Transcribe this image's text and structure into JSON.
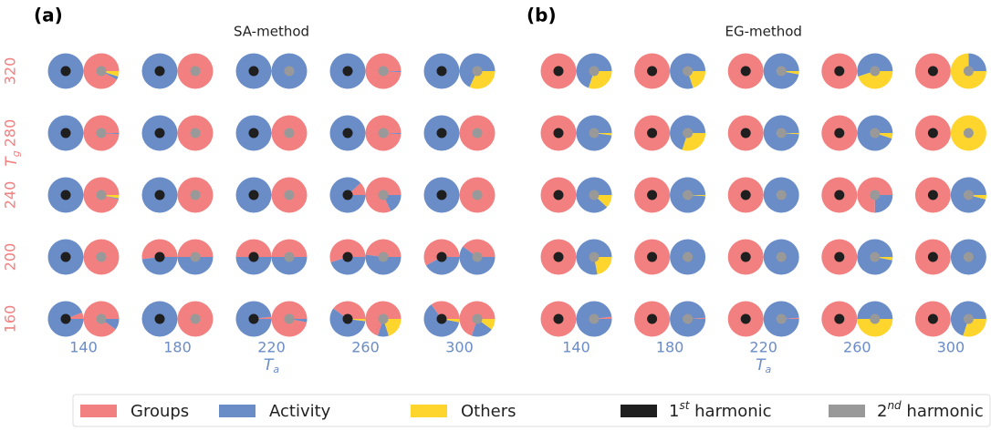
{
  "chart_data": [
    {
      "type": "pie-grid",
      "panel_label": "(a)",
      "title": "SA-method",
      "xlabel": {
        "text": "T",
        "sub": "a"
      },
      "ylabel": {
        "text": "T",
        "sub": "g"
      },
      "xcategories": [
        "140",
        "180",
        "220",
        "260",
        "300"
      ],
      "ycategories": [
        "320",
        "280",
        "240",
        "200",
        "160"
      ],
      "xaxis_color": "#6a8cc7",
      "yaxis_color": "#f28080",
      "pies": [
        [
          [
            [
              0,
              100,
              0
            ],
            [
              92,
              3,
              5
            ]
          ],
          [
            [
              0,
              100,
              0
            ],
            [
              100,
              0,
              0
            ]
          ],
          [
            [
              0,
              100,
              0
            ],
            [
              0,
              100,
              0
            ]
          ],
          [
            [
              0,
              100,
              0
            ],
            [
              99,
              1,
              0
            ]
          ],
          [
            [
              0,
              100,
              0
            ],
            [
              0,
              68,
              32
            ]
          ]
        ],
        [
          [
            [
              0,
              100,
              0
            ],
            [
              99,
              1,
              0
            ]
          ],
          [
            [
              0,
              100,
              0
            ],
            [
              100,
              0,
              0
            ]
          ],
          [
            [
              0,
              100,
              0
            ],
            [
              100,
              0,
              0
            ]
          ],
          [
            [
              0,
              100,
              0
            ],
            [
              99,
              1,
              0
            ]
          ],
          [
            [
              0,
              100,
              0
            ],
            [
              100,
              0,
              0
            ]
          ]
        ],
        [
          [
            [
              0,
              100,
              0
            ],
            [
              96,
              1,
              3
            ]
          ],
          [
            [
              0,
              100,
              0
            ],
            [
              100,
              0,
              0
            ]
          ],
          [
            [
              0,
              100,
              0
            ],
            [
              100,
              0,
              0
            ]
          ],
          [
            [
              12,
              88,
              0
            ],
            [
              82,
              18,
              0
            ]
          ],
          [
            [
              0,
              100,
              0
            ],
            [
              100,
              0,
              0
            ]
          ]
        ],
        [
          [
            [
              0,
              100,
              0
            ],
            [
              100,
              0,
              0
            ]
          ],
          [
            [
              52,
              48,
              0
            ],
            [
              50,
              50,
              0
            ]
          ],
          [
            [
              50,
              50,
              0
            ],
            [
              50,
              50,
              0
            ]
          ],
          [
            [
              55,
              45,
              0
            ],
            [
              48,
              52,
              0
            ]
          ],
          [
            [
              58,
              42,
              0
            ],
            [
              40,
              60,
              0
            ]
          ]
        ],
        [
          [
            [
              6,
              94,
              0
            ],
            [
              90,
              10,
              0
            ]
          ],
          [
            [
              0,
              100,
              0
            ],
            [
              100,
              0,
              0
            ]
          ],
          [
            [
              2,
              98,
              0
            ],
            [
              97,
              3,
              0
            ]
          ],
          [
            [
              40,
              58,
              2
            ],
            [
              70,
              10,
              20
            ]
          ],
          [
            [
              35,
              62,
              3
            ],
            [
              70,
              20,
              10
            ]
          ]
        ]
      ]
    },
    {
      "type": "pie-grid",
      "panel_label": "(b)",
      "title": "EG-method",
      "xlabel": {
        "text": "T",
        "sub": "a"
      },
      "xcategories": [
        "140",
        "180",
        "220",
        "260",
        "300"
      ],
      "xaxis_color": "#6a8cc7",
      "pies": [
        [
          [
            [
              100,
              0,
              0
            ],
            [
              0,
              70,
              30
            ]
          ],
          [
            [
              100,
              0,
              0
            ],
            [
              0,
              80,
              20
            ]
          ],
          [
            [
              100,
              0,
              0
            ],
            [
              0,
              97,
              3
            ]
          ],
          [
            [
              100,
              0,
              0
            ],
            [
              0,
              55,
              45
            ]
          ],
          [
            [
              100,
              0,
              0
            ],
            [
              0,
              25,
              75
            ]
          ]
        ],
        [
          [
            [
              100,
              0,
              0
            ],
            [
              0,
              98,
              2
            ]
          ],
          [
            [
              100,
              0,
              0
            ],
            [
              0,
              70,
              30
            ]
          ],
          [
            [
              100,
              0,
              0
            ],
            [
              0,
              99,
              1
            ]
          ],
          [
            [
              100,
              0,
              0
            ],
            [
              0,
              95,
              5
            ]
          ],
          [
            [
              100,
              0,
              0
            ],
            [
              0,
              0,
              100
            ]
          ]
        ],
        [
          [
            [
              100,
              0,
              0
            ],
            [
              0,
              88,
              12
            ]
          ],
          [
            [
              100,
              0,
              0
            ],
            [
              0,
              99,
              1
            ]
          ],
          [
            [
              100,
              0,
              0
            ],
            [
              0,
              100,
              0
            ]
          ],
          [
            [
              100,
              0,
              0
            ],
            [
              75,
              25,
              0
            ]
          ],
          [
            [
              100,
              0,
              0
            ],
            [
              0,
              96,
              4
            ]
          ]
        ],
        [
          [
            [
              100,
              0,
              0
            ],
            [
              0,
              78,
              22
            ]
          ],
          [
            [
              100,
              0,
              0
            ],
            [
              0,
              100,
              0
            ]
          ],
          [
            [
              100,
              0,
              0
            ],
            [
              0,
              100,
              0
            ]
          ],
          [
            [
              100,
              0,
              0
            ],
            [
              0,
              97,
              3
            ]
          ],
          [
            [
              100,
              0,
              0
            ],
            [
              0,
              100,
              0
            ]
          ]
        ],
        [
          [
            [
              100,
              0,
              0
            ],
            [
              2,
              98,
              0
            ]
          ],
          [
            [
              100,
              0,
              0
            ],
            [
              1,
              99,
              0
            ]
          ],
          [
            [
              100,
              0,
              0
            ],
            [
              1,
              99,
              0
            ]
          ],
          [
            [
              100,
              0,
              0
            ],
            [
              0,
              50,
              50
            ]
          ],
          [
            [
              100,
              0,
              0
            ],
            [
              0,
              70,
              30
            ]
          ]
        ]
      ]
    }
  ],
  "legend": {
    "series": [
      {
        "name": "Groups",
        "color": "#f28080"
      },
      {
        "name": "Activity",
        "color": "#6a8cc7"
      },
      {
        "name": "Others",
        "color": "#fdd52c"
      }
    ],
    "harmonics": [
      {
        "name": "1",
        "sup": "st",
        "suffix": " harmonic",
        "color": "#1f1f1f"
      },
      {
        "name": "2",
        "sup": "nd",
        "suffix": " harmonic",
        "color": "#999999"
      }
    ]
  }
}
